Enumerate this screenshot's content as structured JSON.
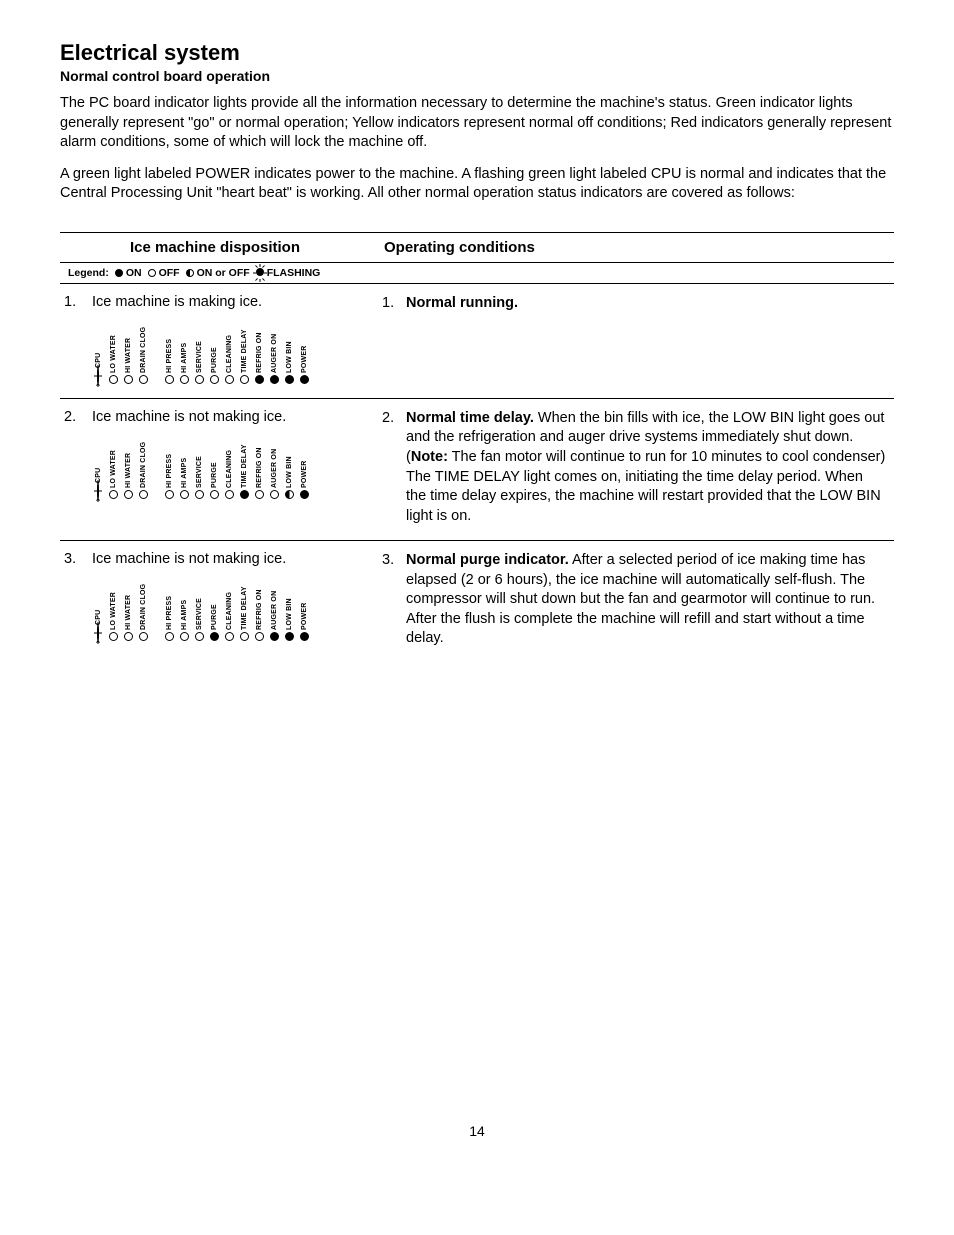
{
  "title": "Electrical system",
  "subtitle": "Normal control board operation",
  "para1": "The PC board indicator lights provide all the information necessary to determine the machine's status. Green indicator lights generally represent \"go\" or normal operation; Yellow indicators represent normal off conditions; Red indicators generally represent alarm conditions, some of which will lock the machine off.",
  "para2": "A green light labeled POWER indicates power to the machine. A flashing green light labeled CPU is normal and indicates that the Central Processing Unit \"heart beat\" is working. All other normal operation status indicators are covered as follows:",
  "columns": {
    "left": "Ice machine disposition",
    "right": "Operating conditions"
  },
  "legend": {
    "label": "Legend:",
    "on": "ON",
    "off": "OFF",
    "onoff": "ON or OFF",
    "flashing": "FLASHING"
  },
  "led_labels_g1": [
    "CPU",
    "LO WATER",
    "HI WATER",
    "DRAIN CLOG"
  ],
  "led_labels_g2": [
    "HI PRESS",
    "HI AMPS",
    "SERVICE",
    "PURGE",
    "CLEANING",
    "TIME DELAY",
    "REFRIG ON",
    "AUGER ON",
    "LOW BIN",
    "POWER"
  ],
  "rows": [
    {
      "num": "1.",
      "disp_title": "Ice machine is making ice.",
      "g1": [
        "flash",
        "off",
        "off",
        "off"
      ],
      "g2": [
        "off",
        "off",
        "off",
        "off",
        "off",
        "off",
        "on",
        "on",
        "on",
        "on"
      ],
      "cond_num": "1.",
      "cond_bold": "Normal running.",
      "cond_rest": ""
    },
    {
      "num": "2.",
      "disp_title": "Ice machine is not making ice.",
      "g1": [
        "flash",
        "off",
        "off",
        "off"
      ],
      "g2": [
        "off",
        "off",
        "off",
        "off",
        "off",
        "on",
        "off",
        "off",
        "half",
        "on"
      ],
      "cond_num": "2.",
      "cond_bold": "Normal time delay.",
      "cond_rest": " When the bin fills with ice, the LOW BIN light goes out and the refrigeration and auger drive systems immediately shut down. (Note: The fan motor will continue to run for 10 minutes to cool condenser) The TIME DELAY light comes on, initiating the time delay period. When the time delay expires, the machine will restart provided that the LOW BIN light is on."
    },
    {
      "num": "3.",
      "disp_title": "Ice machine is not making ice.",
      "g1": [
        "flash",
        "off",
        "off",
        "off"
      ],
      "g2": [
        "off",
        "off",
        "off",
        "on",
        "off",
        "off",
        "off",
        "on",
        "on",
        "on"
      ],
      "cond_num": "3.",
      "cond_bold": "Normal purge indicator.",
      "cond_rest": " After a selected period of ice making time has elapsed (2 or 6 hours), the ice machine will automatically self-flush. The compressor will shut down but the fan and gearmotor will continue to run. After the flush is complete the machine will refill and start without a time delay."
    }
  ],
  "note_word": "Note:",
  "page_number": "14"
}
